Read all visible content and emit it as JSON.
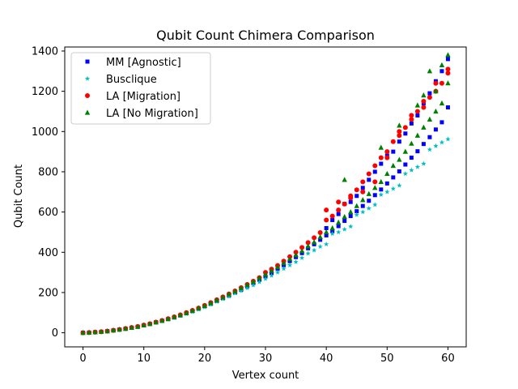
{
  "chart_data": {
    "type": "scatter",
    "title": "Qubit Count Chimera Comparison",
    "xlabel": "Vertex count",
    "ylabel": "Qubit Count",
    "xlim": [
      -3,
      63
    ],
    "ylim": [
      -70,
      1420
    ],
    "xticks": [
      0,
      10,
      20,
      30,
      40,
      50,
      60
    ],
    "yticks": [
      0,
      200,
      400,
      600,
      800,
      1000,
      1200,
      1400
    ],
    "grid": false,
    "legend_position": "top-left",
    "series": [
      {
        "name": "MM [Agnostic]",
        "marker": "square",
        "color": "#0000ff",
        "x": [
          0,
          1,
          2,
          3,
          4,
          5,
          6,
          7,
          8,
          9,
          10,
          11,
          12,
          13,
          14,
          15,
          16,
          17,
          18,
          19,
          20,
          21,
          22,
          23,
          24,
          25,
          26,
          27,
          28,
          29,
          30,
          31,
          32,
          33,
          34,
          35,
          36,
          37,
          38,
          39,
          40,
          41,
          42,
          43,
          44,
          45,
          46,
          47,
          48,
          49,
          50,
          51,
          52,
          53,
          54,
          55,
          56,
          57,
          58,
          59,
          60,
          60,
          59,
          58,
          57,
          56,
          55,
          54,
          53,
          52,
          51,
          50,
          49,
          48,
          47,
          46,
          45,
          44,
          43,
          42,
          41,
          40
        ],
        "y": [
          0,
          1,
          3,
          5,
          8,
          12,
          16,
          20,
          25,
          30,
          37,
          44,
          52,
          60,
          68,
          76,
          86,
          97,
          108,
          120,
          132,
          144,
          158,
          172,
          185,
          200,
          214,
          230,
          246,
          262,
          280,
          298,
          318,
          336,
          356,
          376,
          396,
          420,
          440,
          462,
          484,
          506,
          530,
          556,
          580,
          604,
          630,
          656,
          684,
          712,
          742,
          772,
          802,
          836,
          870,
          902,
          938,
          972,
          1010,
          1046,
          1120,
          1360,
          1300,
          1250,
          1190,
          1140,
          1080,
          1040,
          990,
          950,
          900,
          880,
          840,
          800,
          760,
          720,
          680,
          650,
          640,
          590,
          560,
          520
        ]
      },
      {
        "name": "Busclique",
        "marker": "star",
        "color": "#00bfbf",
        "x": [
          0,
          1,
          2,
          3,
          4,
          5,
          6,
          7,
          8,
          9,
          10,
          11,
          12,
          13,
          14,
          15,
          16,
          17,
          18,
          19,
          20,
          21,
          22,
          23,
          24,
          25,
          26,
          27,
          28,
          29,
          30,
          31,
          32,
          33,
          34,
          35,
          36,
          37,
          38,
          39,
          40,
          41,
          42,
          43,
          44,
          45,
          46,
          47,
          48,
          49,
          50,
          51,
          52,
          53,
          54,
          55,
          56,
          57,
          58,
          59,
          60
        ],
        "y": [
          0,
          1,
          3,
          5,
          8,
          12,
          16,
          20,
          25,
          30,
          36,
          43,
          50,
          58,
          66,
          75,
          84,
          94,
          104,
          115,
          127,
          140,
          154,
          168,
          180,
          196,
          208,
          222,
          236,
          252,
          268,
          284,
          300,
          318,
          336,
          352,
          372,
          394,
          410,
          428,
          440,
          492,
          500,
          514,
          528,
          586,
          600,
          618,
          636,
          686,
          700,
          716,
          732,
          790,
          808,
          824,
          840,
          910,
          928,
          946,
          962
        ]
      },
      {
        "name": "LA [Migration]",
        "marker": "circle",
        "color": "#ff0000",
        "x": [
          0,
          1,
          2,
          3,
          4,
          5,
          6,
          7,
          8,
          9,
          10,
          11,
          12,
          13,
          14,
          15,
          16,
          17,
          18,
          19,
          20,
          21,
          22,
          23,
          24,
          25,
          26,
          27,
          28,
          29,
          30,
          31,
          32,
          33,
          34,
          35,
          36,
          37,
          38,
          39,
          40,
          41,
          42,
          43,
          44,
          45,
          46,
          47,
          48,
          49,
          50,
          51,
          52,
          53,
          54,
          55,
          56,
          57,
          58,
          59,
          60,
          40,
          42,
          44,
          46,
          48,
          50,
          52,
          54,
          56,
          58,
          60
        ],
        "y": [
          0,
          1,
          3,
          5,
          8,
          12,
          16,
          21,
          26,
          31,
          38,
          45,
          53,
          61,
          70,
          79,
          89,
          100,
          111,
          123,
          136,
          150,
          164,
          178,
          193,
          208,
          224,
          240,
          256,
          274,
          300,
          316,
          334,
          356,
          378,
          400,
          424,
          448,
          472,
          498,
          560,
          580,
          610,
          640,
          670,
          710,
          750,
          790,
          830,
          870,
          900,
          950,
          980,
          1020,
          1060,
          1100,
          1150,
          1170,
          1200,
          1240,
          1310,
          610,
          650,
          680,
          700,
          750,
          870,
          1000,
          1080,
          1120,
          1240,
          1290
        ]
      },
      {
        "name": "LA [No Migration]",
        "marker": "triangle",
        "color": "#008000",
        "x": [
          0,
          1,
          2,
          3,
          4,
          5,
          6,
          7,
          8,
          9,
          10,
          11,
          12,
          13,
          14,
          15,
          16,
          17,
          18,
          19,
          20,
          21,
          22,
          23,
          24,
          25,
          26,
          27,
          28,
          29,
          30,
          31,
          32,
          33,
          34,
          35,
          36,
          37,
          38,
          39,
          40,
          41,
          42,
          43,
          44,
          45,
          46,
          47,
          48,
          49,
          50,
          51,
          52,
          53,
          54,
          55,
          56,
          57,
          58,
          59,
          60,
          43,
          49,
          52,
          55,
          56,
          57,
          58,
          59,
          60
        ],
        "y": [
          0,
          1,
          3,
          5,
          8,
          12,
          16,
          20,
          25,
          30,
          37,
          44,
          52,
          60,
          69,
          78,
          88,
          98,
          110,
          122,
          134,
          148,
          162,
          176,
          192,
          206,
          222,
          238,
          254,
          272,
          290,
          308,
          326,
          346,
          366,
          386,
          406,
          430,
          450,
          476,
          500,
          520,
          548,
          576,
          600,
          630,
          660,
          690,
          720,
          750,
          790,
          830,
          860,
          900,
          940,
          980,
          1020,
          1060,
          1100,
          1140,
          1240,
          760,
          920,
          1030,
          1130,
          1180,
          1300,
          1200,
          1330,
          1380
        ]
      }
    ]
  }
}
